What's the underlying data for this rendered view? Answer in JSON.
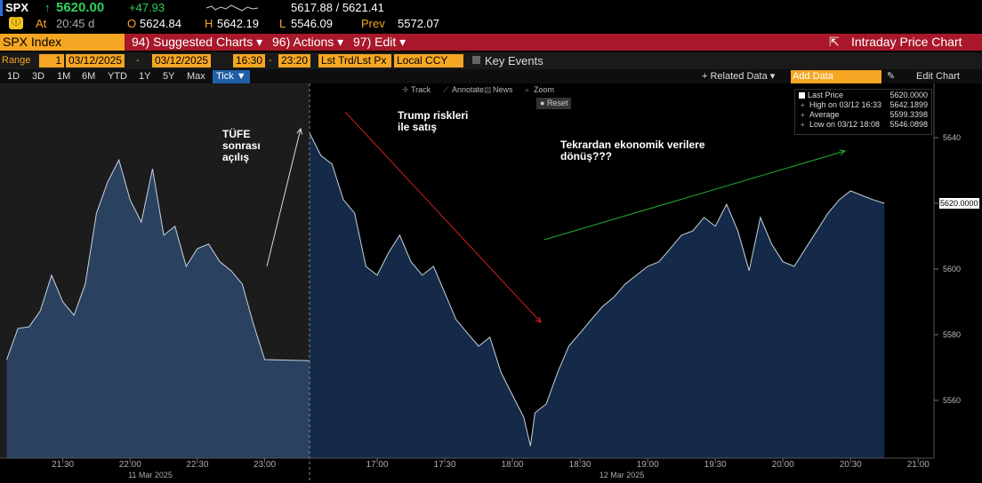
{
  "header": {
    "ticker": "SPX",
    "arrow": "↑",
    "last": "5620.00",
    "change": "+47.93",
    "bid_ask": "5617.88 / 5621.41",
    "time_label": "At",
    "time": "20:45 d",
    "open_label": "O",
    "open": "5624.84",
    "high_label": "H",
    "high": "5642.19",
    "low_label": "L",
    "low": "5546.09",
    "prev_label": "Prev",
    "prev": "5572.07"
  },
  "menu": {
    "security": "SPX Index",
    "items": [
      "94) Suggested Charts ▾",
      "96) Actions ▾",
      "97) Edit ▾"
    ],
    "title": "Intraday Price Chart"
  },
  "range_bar": {
    "label": "Range",
    "number": "1",
    "start_date": "03/12/2025",
    "sep1": "-",
    "end_date": "03/12/2025",
    "start_time": "16:30",
    "sep2": "-",
    "end_time": "23:20",
    "price": "Lst Trd/Lst Px",
    "currency": "Local CCY",
    "events": "Key Events"
  },
  "periods": [
    "1D",
    "3D",
    "1M",
    "6M",
    "YTD",
    "1Y",
    "5Y",
    "Max"
  ],
  "tick_menu": "Tick ▼",
  "related": "+ Related Data ▾",
  "add_data": "Add Data",
  "edit_chart": "Edit Chart",
  "chart_tools": [
    "Track",
    "Annotate",
    "News",
    "Zoom"
  ],
  "reset": "Reset",
  "legend": [
    [
      "Last Price",
      "5620.0000"
    ],
    [
      "High on 03/12 16:33",
      "5642.1899"
    ],
    [
      "Average",
      "5599.3398"
    ],
    [
      "Low on 03/12 18:08",
      "5546.0898"
    ]
  ],
  "last_tag": "5620.0000",
  "chart_data": [
    {
      "type": "area",
      "xlabel": "11 Mar 2025",
      "color": "#c9d2de",
      "fill": "#2a4260",
      "background": "#1c1c1c",
      "x": [
        "21:05",
        "21:10",
        "21:15",
        "21:20",
        "21:25",
        "21:30",
        "21:35",
        "21:40",
        "21:45",
        "21:50",
        "21:55",
        "22:00",
        "22:05",
        "22:10",
        "22:15",
        "22:20",
        "22:25",
        "22:30",
        "22:35",
        "22:40",
        "22:45",
        "22:50",
        "22:55",
        "23:00",
        "23:20"
      ],
      "values": [
        5572.4,
        5581.9,
        5582.4,
        5587.3,
        5598.1,
        5590.0,
        5585.9,
        5595.4,
        5617.0,
        5626.5,
        5633.2,
        5621.1,
        5614.3,
        5630.5,
        5610.3,
        5613.0,
        5600.8,
        5606.2,
        5607.6,
        5602.2,
        5599.5,
        5595.4,
        5583.2,
        5572.4,
        5572.07
      ],
      "xlim": [
        "21:02",
        "23:20"
      ],
      "ylim": [
        5542.4,
        5656.5
      ],
      "xticks": [
        "21:30",
        "22:00",
        "22:30",
        "23:00"
      ],
      "annotations": [
        [
          "TÜFE",
          "sonrası",
          "açılış"
        ]
      ]
    },
    {
      "type": "area",
      "xlabel": "12 Mar 2025",
      "color": "#c9d2de",
      "fill": "#142a48",
      "background": "#000000",
      "x": [
        "16:30",
        "16:35",
        "16:40",
        "16:45",
        "16:50",
        "16:55",
        "17:00",
        "17:05",
        "17:10",
        "17:15",
        "17:20",
        "17:25",
        "17:30",
        "17:35",
        "17:40",
        "17:45",
        "17:50",
        "17:55",
        "18:00",
        "18:05",
        "18:08",
        "18:10",
        "18:15",
        "18:20",
        "18:25",
        "18:30",
        "18:35",
        "18:40",
        "18:45",
        "18:50",
        "18:55",
        "19:00",
        "19:05",
        "19:10",
        "19:15",
        "19:20",
        "19:25",
        "19:30",
        "19:35",
        "19:40",
        "19:45",
        "19:50",
        "19:55",
        "20:00",
        "20:05",
        "20:10",
        "20:15",
        "20:20",
        "20:25",
        "20:30",
        "20:35",
        "20:40",
        "20:45"
      ],
      "values": [
        5641.4,
        5634.6,
        5631.9,
        5621.1,
        5617.0,
        5600.8,
        5598.1,
        5604.9,
        5610.3,
        5602.2,
        5598.1,
        5600.8,
        5592.7,
        5584.6,
        5580.5,
        5576.5,
        5579.2,
        5568.4,
        5561.6,
        5554.9,
        5546.1,
        5556.2,
        5558.9,
        5568.4,
        5576.5,
        5580.5,
        5584.6,
        5588.6,
        5591.4,
        5595.4,
        5598.1,
        5600.8,
        5602.2,
        5606.2,
        5610.3,
        5611.6,
        5615.7,
        5613.0,
        5619.7,
        5611.6,
        5599.5,
        5615.7,
        5607.6,
        5602.2,
        5600.8,
        5606.2,
        5611.6,
        5617.0,
        5621.1,
        5623.8,
        5622.4,
        5621.1,
        5620.0
      ],
      "xlim": [
        "16:30",
        "21:07"
      ],
      "ylim": [
        5542.4,
        5656.5
      ],
      "xticks": [
        "17:00",
        "17:30",
        "18:00",
        "18:30",
        "19:00",
        "19:30",
        "20:00",
        "20:30",
        "21:00"
      ],
      "yticks": [
        5560,
        5580,
        5600,
        5620,
        5640
      ],
      "annotations": [
        [
          "Trump riskleri",
          "ile satış"
        ],
        [
          "Tekrardan ekonomik verilere",
          "dönüş???"
        ]
      ]
    }
  ]
}
